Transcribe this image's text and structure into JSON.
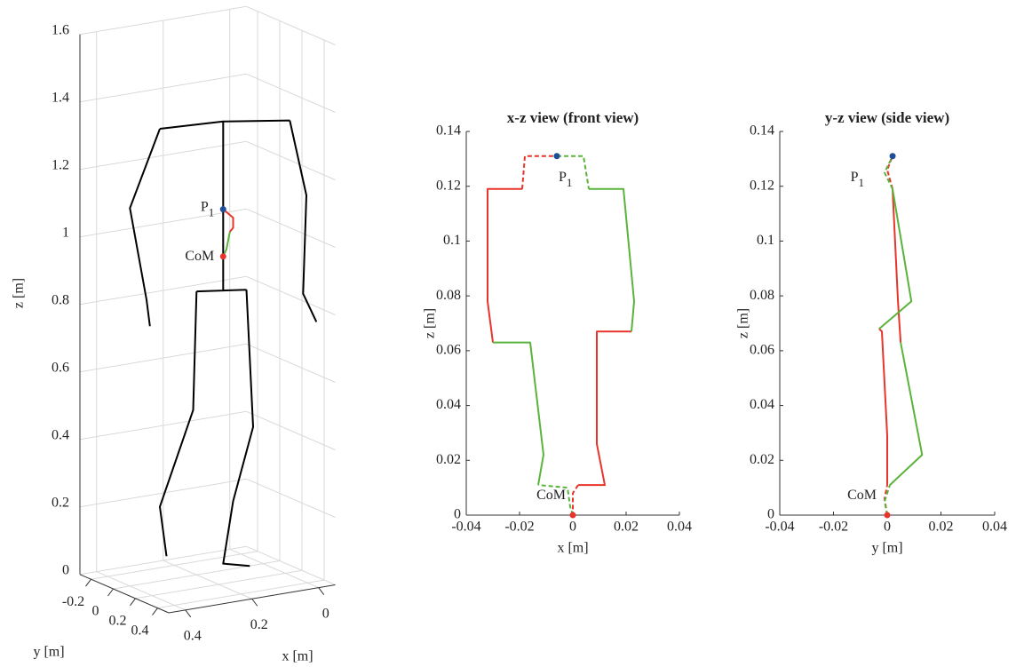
{
  "chart_data": [
    {
      "type": "line3d",
      "xlabel": "x [m]",
      "ylabel": "y [m]",
      "zlabel": "z [m]",
      "xlim": [
        -0.05,
        0.45
      ],
      "ylim": [
        -0.3,
        0.5
      ],
      "zlim": [
        0,
        1.6
      ],
      "xticks": [
        0,
        0.2,
        0.4
      ],
      "yticks": [
        -0.2,
        0,
        0.2,
        0.4
      ],
      "zticks": [
        0,
        0.2,
        0.4,
        0.6,
        0.8,
        1,
        1.2,
        1.4,
        1.6
      ],
      "grid": true,
      "series": [
        {
          "color": "#000000",
          "x": [
            0.31,
            0.12,
            -0.08,
            null,
            0.31,
            0.4,
            0.35,
            0.34,
            null,
            -0.08,
            -0.13,
            -0.12,
            -0.16,
            null,
            0.12,
            0.12,
            0.12,
            null,
            0.2,
            0.05,
            null,
            0.2,
            0.21,
            0.31,
            0.29,
            null,
            0.05,
            0.03,
            0.09,
            0.12,
            0.04
          ],
          "z": [
            1.34,
            1.33,
            1.3,
            null,
            1.34,
            1.12,
            0.84,
            0.76,
            null,
            1.3,
            1.07,
            0.78,
            0.69,
            null,
            1.33,
            1.07,
            0.83,
            null,
            0.84,
            0.82,
            null,
            0.84,
            0.49,
            0.22,
            0.07,
            null,
            0.82,
            0.41,
            0.2,
            0.02,
            0
          ]
        },
        {
          "color": "#e8352c",
          "x": [
            0.12,
            0.09,
            0.09,
            0.1
          ],
          "z": [
            1.07,
            1.04,
            1.01,
            1.0
          ]
        },
        {
          "color": "#5ab33a",
          "x": [
            0.1,
            0.11,
            0.12
          ],
          "z": [
            1.0,
            0.95,
            0.93
          ]
        }
      ],
      "markers": [
        {
          "label": "P",
          "sub": "1",
          "x": 0.12,
          "z": 1.07,
          "color": "#1f4e99"
        },
        {
          "label": "CoM",
          "x": 0.12,
          "z": 0.93,
          "color": "#e8352c"
        }
      ]
    },
    {
      "type": "line",
      "title": "x-z view (front view)",
      "xlabel": "x [m]",
      "ylabel": "z [m]",
      "xlim": [
        -0.04,
        0.04
      ],
      "ylim": [
        0,
        0.14
      ],
      "xticks": [
        -0.04,
        -0.02,
        0,
        0.02,
        0.04
      ],
      "yticks": [
        0,
        0.02,
        0.04,
        0.06,
        0.08,
        0.1,
        0.12,
        0.14
      ],
      "series": [
        {
          "color": "#e8352c",
          "dashed": false,
          "x": [
            -0.03,
            -0.032,
            -0.032,
            -0.019,
            null,
            0.022,
            0.009,
            0.009,
            0.012,
            0.002
          ],
          "values": [
            0.063,
            0.078,
            0.119,
            0.119,
            null,
            0.067,
            0.067,
            0.026,
            0.011,
            0.011
          ]
        },
        {
          "color": "#e8352c",
          "dashed": true,
          "x": [
            -0.019,
            -0.018,
            -0.006,
            null,
            0.002,
            0,
            0
          ],
          "values": [
            0.119,
            0.131,
            0.131,
            null,
            0.011,
            0.008,
            0
          ]
        },
        {
          "color": "#5ab33a",
          "dashed": false,
          "x": [
            -0.013,
            -0.011,
            -0.016,
            -0.03,
            null,
            0.006,
            0.019,
            0.023,
            0.022
          ],
          "values": [
            0.011,
            0.022,
            0.063,
            0.063,
            null,
            0.119,
            0.119,
            0.078,
            0.067
          ]
        },
        {
          "color": "#5ab33a",
          "dashed": true,
          "x": [
            0,
            -0.001,
            -0.002,
            -0.013,
            null,
            -0.006,
            0.004,
            0.006
          ],
          "values": [
            0,
            0.003,
            0.01,
            0.011,
            null,
            0.131,
            0.131,
            0.119
          ]
        }
      ],
      "markers": [
        {
          "label": "P",
          "sub": "1",
          "x": -0.006,
          "value": 0.131,
          "color": "#1f4e99"
        },
        {
          "label": "CoM",
          "x": 0,
          "value": 0,
          "color": "#e8352c"
        }
      ]
    },
    {
      "type": "line",
      "title": "y-z view (side view)",
      "xlabel": "y [m]",
      "ylabel": "z [m]",
      "xlim": [
        -0.04,
        0.04
      ],
      "ylim": [
        0,
        0.14
      ],
      "xticks": [
        -0.04,
        -0.02,
        0,
        0.02,
        0.04
      ],
      "yticks": [
        0,
        0.02,
        0.04,
        0.06,
        0.08,
        0.1,
        0.12,
        0.14
      ],
      "series": [
        {
          "color": "#e8352c",
          "dashed": false,
          "x": [
            0.005,
            0.004,
            0.002,
            null,
            0,
            0,
            -0.002,
            -0.003
          ],
          "values": [
            0.063,
            0.078,
            0.119,
            null,
            0.011,
            0.029,
            0.067,
            0.068
          ]
        },
        {
          "color": "#e8352c",
          "dashed": true,
          "x": [
            0.002,
            0,
            0.002,
            null,
            0,
            -0.001,
            0
          ],
          "values": [
            0.119,
            0.126,
            0.131,
            null,
            0,
            0.006,
            0.011
          ]
        },
        {
          "color": "#5ab33a",
          "dashed": false,
          "x": [
            0.001,
            0.013,
            0.005,
            null,
            -0.003,
            0.009,
            0.002
          ],
          "values": [
            0.011,
            0.022,
            0.063,
            null,
            0.068,
            0.078,
            0.119
          ]
        },
        {
          "color": "#5ab33a",
          "dashed": true,
          "x": [
            0,
            -0.001,
            0.001,
            null,
            0.002,
            -0.001,
            0.002
          ],
          "values": [
            0,
            0.005,
            0.011,
            null,
            0.119,
            0.125,
            0.131
          ]
        }
      ],
      "markers": [
        {
          "label": "P",
          "sub": "1",
          "x": 0.002,
          "value": 0.131,
          "color": "#1f4e99"
        },
        {
          "label": "CoM",
          "x": 0,
          "value": 0,
          "color": "#e8352c"
        }
      ]
    }
  ]
}
